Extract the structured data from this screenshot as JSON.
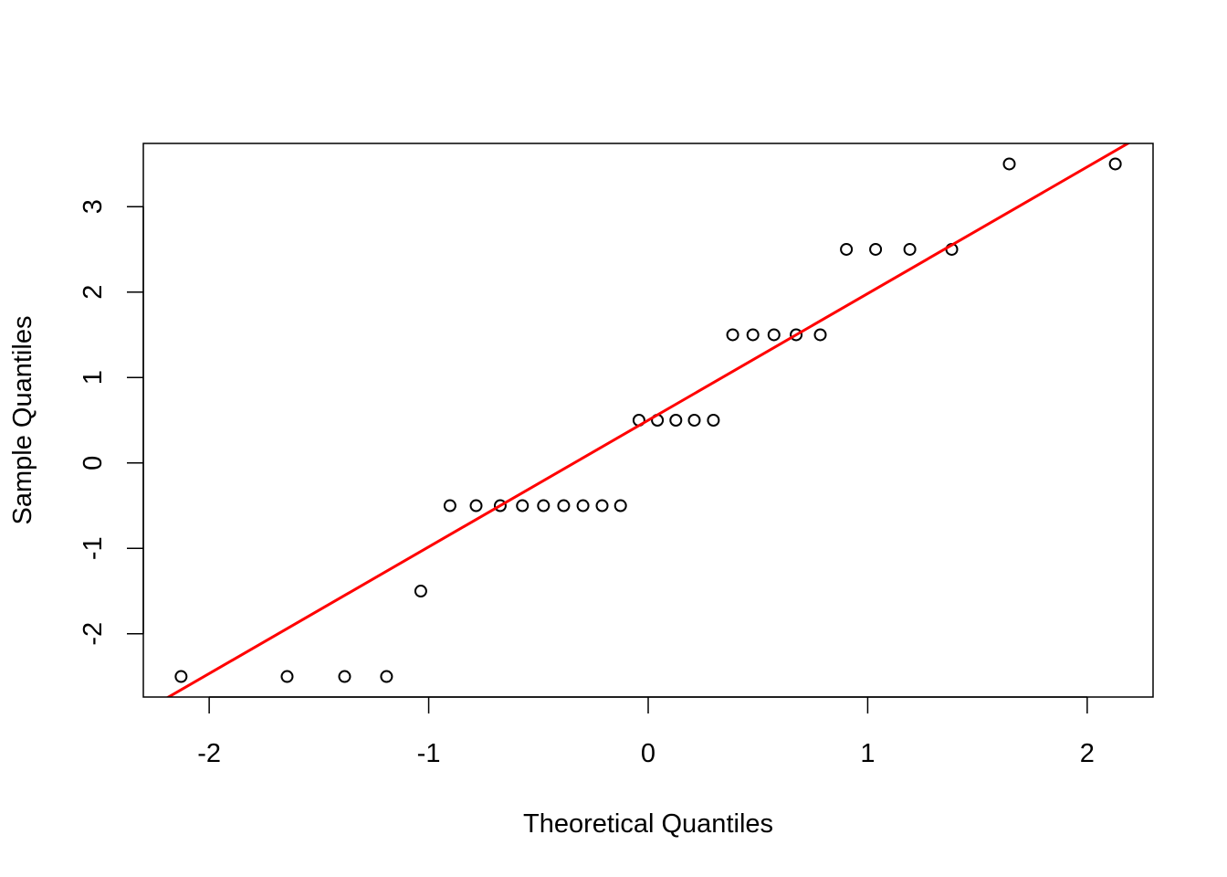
{
  "chart_data": {
    "type": "scatter",
    "title": "",
    "xlabel": "Theoretical Quantiles",
    "ylabel": "Sample Quantiles",
    "xlim": [
      -2.3,
      2.3
    ],
    "ylim": [
      -2.74,
      3.74
    ],
    "x_ticks": [
      -2,
      -1,
      0,
      1,
      2
    ],
    "x_tick_labels": [
      "-2",
      "-1",
      "0",
      "1",
      "2"
    ],
    "y_ticks": [
      -2,
      -1,
      0,
      1,
      2,
      3
    ],
    "y_tick_labels": [
      "-2",
      "-1",
      "0",
      "1",
      "2",
      "3"
    ],
    "grid": false,
    "legend": "none",
    "points": {
      "x": [
        -2.128,
        -1.645,
        -1.383,
        -1.192,
        -1.036,
        -0.903,
        -0.784,
        -0.674,
        -0.573,
        -0.477,
        -0.385,
        -0.297,
        -0.21,
        -0.126,
        -0.042,
        0.042,
        0.126,
        0.21,
        0.297,
        0.385,
        0.477,
        0.573,
        0.674,
        0.784,
        0.903,
        1.036,
        1.192,
        1.383,
        1.645,
        2.128
      ],
      "y": [
        -2.5,
        -2.5,
        -2.5,
        -2.5,
        -1.5,
        -0.5,
        -0.5,
        -0.5,
        -0.5,
        -0.5,
        -0.5,
        -0.5,
        -0.5,
        -0.5,
        0.5,
        0.5,
        0.5,
        0.5,
        0.5,
        1.5,
        1.5,
        1.5,
        1.5,
        1.5,
        2.5,
        2.5,
        2.5,
        2.5,
        3.5,
        3.5
      ],
      "marker": "open-circle",
      "color": "#000000"
    },
    "reference_line": {
      "intercept": 0.5,
      "slope": 1.4826,
      "color": "#ff0000"
    }
  }
}
